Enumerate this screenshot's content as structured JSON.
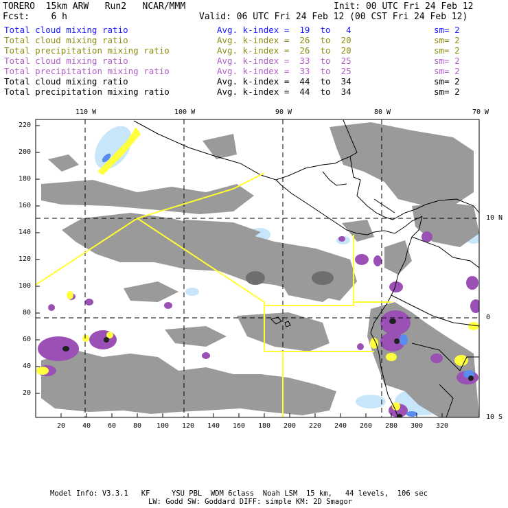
{
  "header": {
    "model": "TORERO",
    "resolution": "15km ARW",
    "run": "Run2",
    "org": "NCAR/MMM",
    "init": "Init: 00 UTC Fri 24 Feb 12",
    "fcst_label": "Fcst:",
    "fcst_value": "6 h",
    "valid": "Valid: 06 UTC Fri 24 Feb 12 (00 CST Fri 24 Feb 12)"
  },
  "legend": [
    {
      "field": "Total cloud mixing ratio",
      "kindex": "Avg. k-index =  19  to   4",
      "sm": "sm= 2",
      "color": "#1a1aff"
    },
    {
      "field": "Total cloud mixing ratio",
      "kindex": "Avg. k-index =  26  to  20",
      "sm": "sm= 2",
      "color": "#8c8c14"
    },
    {
      "field": "Total precipitation mixing ratio",
      "kindex": "Avg. k-index =  26  to  20",
      "sm": "sm= 2",
      "color": "#8c8c14"
    },
    {
      "field": "Total cloud mixing ratio",
      "kindex": "Avg. k-index =  33  to  25",
      "sm": "sm= 2",
      "color": "#b060c8"
    },
    {
      "field": "Total precipitation mixing ratio",
      "kindex": "Avg. k-index =  33  to  25",
      "sm": "sm= 2",
      "color": "#b060c8"
    },
    {
      "field": "Total cloud mixing ratio",
      "kindex": "Avg. k-index =  44  to  34",
      "sm": "sm= 2",
      "color": "#000000"
    },
    {
      "field": "Total precipitation mixing ratio",
      "kindex": "Avg. k-index =  44  to  34",
      "sm": "sm= 2",
      "color": "#000000"
    }
  ],
  "axes": {
    "top_lon_labels": [
      "110 W",
      "100 W",
      "90 W",
      "80 W",
      "70 W"
    ],
    "y_ticks": [
      "220",
      "200",
      "180",
      "160",
      "140",
      "120",
      "100",
      "80",
      "60",
      "40",
      "20"
    ],
    "x_ticks": [
      "20",
      "40",
      "60",
      "80",
      "100",
      "120",
      "140",
      "160",
      "180",
      "200",
      "220",
      "240",
      "260",
      "280",
      "300",
      "320"
    ],
    "right_lat_labels": [
      "10 N",
      "0",
      "10 S"
    ]
  },
  "footer": {
    "line1": "Model Info: V3.3.1   KF     YSU PBL  WDM 6class  Noah LSM  15 km,   44 levels,  106 sec",
    "line2": "LW: Godd SW: Goddard DIFF: simple KM: 2D Smagor"
  },
  "colors": {
    "cloud_gray": "#9a9a9a",
    "dark_core": "#505050",
    "magenta": "#9a50b4",
    "light_blue": "#c8e6fa",
    "blue": "#5a8cf0",
    "yellow_region": "#ffff32"
  }
}
